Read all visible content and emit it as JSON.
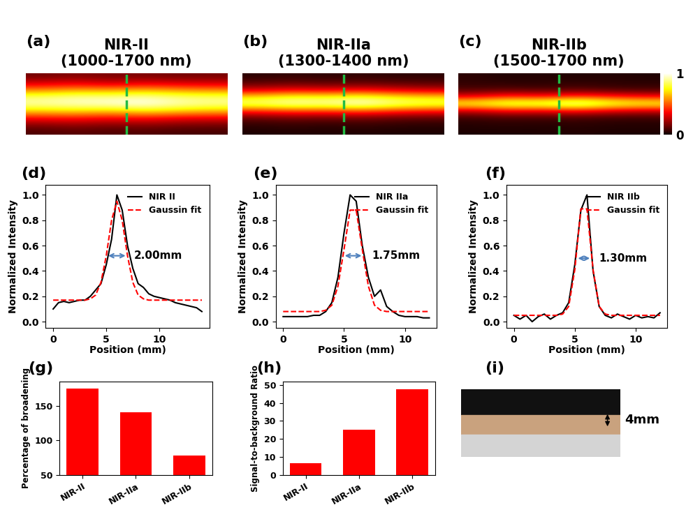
{
  "chart_data": [
    {
      "type": "image",
      "label": "(a)",
      "title": "NIR-II\n(1000-1700 nm)",
      "color_range": [
        0,
        1
      ],
      "cells": [
        [
          0.15,
          0.18,
          0.16,
          0.17,
          0.15,
          0.16
        ],
        [
          0.3,
          0.33,
          0.28,
          0.32,
          0.3,
          0.29
        ],
        [
          0.55,
          0.6,
          0.58,
          0.62,
          0.57,
          0.55
        ],
        [
          0.85,
          0.9,
          0.88,
          0.92,
          0.86,
          0.84
        ],
        [
          0.92,
          0.95,
          0.97,
          1.0,
          0.93,
          0.9
        ],
        [
          0.7,
          0.72,
          0.68,
          0.75,
          0.7,
          0.66
        ],
        [
          0.4,
          0.42,
          0.38,
          0.41,
          0.37,
          0.36
        ],
        [
          0.2,
          0.22,
          0.19,
          0.21,
          0.18,
          0.17
        ],
        [
          0.1,
          0.12,
          0.1,
          0.11,
          0.09,
          0.09
        ]
      ]
    },
    {
      "type": "image",
      "label": "(b)",
      "title": "NIR-IIa\n(1300-1400 nm)",
      "color_range": [
        0,
        1
      ],
      "cells": [
        [
          0.05,
          0.06,
          0.05,
          0.06,
          0.05,
          0.05
        ],
        [
          0.12,
          0.14,
          0.12,
          0.13,
          0.12,
          0.11
        ],
        [
          0.3,
          0.35,
          0.32,
          0.36,
          0.31,
          0.28
        ],
        [
          0.7,
          0.78,
          0.75,
          0.8,
          0.72,
          0.68
        ],
        [
          0.88,
          0.95,
          0.92,
          1.0,
          0.9,
          0.85
        ],
        [
          0.45,
          0.5,
          0.48,
          0.52,
          0.46,
          0.42
        ],
        [
          0.15,
          0.18,
          0.16,
          0.18,
          0.15,
          0.14
        ],
        [
          0.06,
          0.07,
          0.06,
          0.07,
          0.06,
          0.05
        ],
        [
          0.03,
          0.04,
          0.03,
          0.04,
          0.03,
          0.03
        ]
      ]
    },
    {
      "type": "image",
      "label": "(c)",
      "title": "NIR-IIb\n(1500-1700 nm)",
      "color_range": [
        0,
        1
      ],
      "color_ticks": [
        0,
        1
      ],
      "cells": [
        [
          0.05,
          0.03,
          0.04,
          0.03,
          0.04,
          0.03
        ],
        [
          0.06,
          0.05,
          0.05,
          0.06,
          0.05,
          0.05
        ],
        [
          0.1,
          0.12,
          0.1,
          0.12,
          0.1,
          0.09
        ],
        [
          0.35,
          0.45,
          0.4,
          0.48,
          0.42,
          0.38
        ],
        [
          0.8,
          0.9,
          0.88,
          1.0,
          0.85,
          0.8
        ],
        [
          0.3,
          0.38,
          0.35,
          0.4,
          0.33,
          0.3
        ],
        [
          0.08,
          0.1,
          0.09,
          0.1,
          0.08,
          0.08
        ],
        [
          0.04,
          0.05,
          0.04,
          0.05,
          0.04,
          0.04
        ],
        [
          0.03,
          0.03,
          0.03,
          0.04,
          0.03,
          0.03
        ]
      ]
    },
    {
      "type": "line",
      "label": "(d)",
      "x_label": "Position (mm)",
      "y_label": "Normalized Intensity",
      "xlim": [
        -0.7,
        14.7
      ],
      "xticks": [
        0,
        5,
        10
      ],
      "ylim": [
        -0.05,
        1.08
      ],
      "yticks": [
        0.0,
        0.2,
        0.4,
        0.6,
        0.8,
        1.0
      ],
      "legend": "upper right",
      "x": [
        0,
        0.5,
        1,
        1.5,
        2,
        2.5,
        3,
        3.5,
        4,
        4.5,
        5,
        5.5,
        6,
        6.5,
        7,
        7.5,
        8,
        8.5,
        9,
        9.5,
        10,
        10.5,
        11,
        11.5,
        12,
        12.5,
        13,
        13.5,
        14
      ],
      "series": [
        {
          "name": "NIR II",
          "color": "#000000",
          "line_style": "solid",
          "values": [
            0.1,
            0.15,
            0.16,
            0.15,
            0.16,
            0.17,
            0.17,
            0.2,
            0.25,
            0.3,
            0.45,
            0.65,
            1.0,
            0.88,
            0.6,
            0.42,
            0.3,
            0.27,
            0.22,
            0.2,
            0.19,
            0.18,
            0.17,
            0.15,
            0.14,
            0.13,
            0.12,
            0.11,
            0.08
          ]
        },
        {
          "name": "Gaussin fit",
          "color": "#ff0000",
          "line_style": "dashed",
          "values": [
            0.17,
            0.17,
            0.17,
            0.17,
            0.17,
            0.17,
            0.17,
            0.18,
            0.21,
            0.31,
            0.52,
            0.8,
            0.95,
            0.8,
            0.52,
            0.31,
            0.21,
            0.18,
            0.17,
            0.17,
            0.17,
            0.17,
            0.17,
            0.17,
            0.17,
            0.17,
            0.17,
            0.17,
            0.17
          ]
        }
      ],
      "annotation": {
        "text": "2.00mm",
        "from": 5.0,
        "to": 7.0,
        "y": 0.52,
        "text_x": 7.6
      }
    },
    {
      "type": "line",
      "label": "(e)",
      "x_label": "Position (mm)",
      "y_label": "Normalized Intensity",
      "xlim": [
        -0.6,
        12.6
      ],
      "xticks": [
        0,
        5,
        10
      ],
      "ylim": [
        -0.05,
        1.08
      ],
      "yticks": [
        0.0,
        0.2,
        0.4,
        0.6,
        0.8,
        1.0
      ],
      "legend": "upper right",
      "x": [
        0,
        0.5,
        1,
        1.5,
        2,
        2.5,
        3,
        3.5,
        4,
        4.5,
        5,
        5.5,
        6,
        6.5,
        7,
        7.5,
        8,
        8.5,
        9,
        9.5,
        10,
        10.5,
        11,
        11.5,
        12
      ],
      "series": [
        {
          "name": "NIR IIa",
          "color": "#000000",
          "line_style": "solid",
          "values": [
            0.04,
            0.04,
            0.04,
            0.04,
            0.04,
            0.05,
            0.05,
            0.08,
            0.15,
            0.35,
            0.7,
            1.0,
            0.95,
            0.6,
            0.35,
            0.2,
            0.25,
            0.12,
            0.08,
            0.05,
            0.04,
            0.04,
            0.04,
            0.03,
            0.03
          ]
        },
        {
          "name": "Gaussin fit",
          "color": "#ff0000",
          "line_style": "dashed",
          "values": [
            0.08,
            0.08,
            0.08,
            0.08,
            0.08,
            0.08,
            0.08,
            0.09,
            0.13,
            0.28,
            0.57,
            0.88,
            0.88,
            0.57,
            0.28,
            0.13,
            0.09,
            0.08,
            0.08,
            0.08,
            0.08,
            0.08,
            0.08,
            0.08,
            0.08
          ]
        }
      ],
      "annotation": {
        "text": "1.75mm",
        "from": 4.9,
        "to": 6.6,
        "y": 0.52,
        "text_x": 7.3
      }
    },
    {
      "type": "line",
      "label": "(f)",
      "x_label": "Position (mm)",
      "y_label": "Normalized Intensity",
      "xlim": [
        -0.6,
        12.6
      ],
      "xticks": [
        0,
        5,
        10
      ],
      "ylim": [
        -0.05,
        1.08
      ],
      "yticks": [
        0.0,
        0.2,
        0.4,
        0.6,
        0.8,
        1.0
      ],
      "legend": "upper right",
      "x": [
        0,
        0.5,
        1,
        1.5,
        2,
        2.5,
        3,
        3.5,
        4,
        4.5,
        5,
        5.5,
        6,
        6.5,
        7,
        7.5,
        8,
        8.5,
        9,
        9.5,
        10,
        10.5,
        11,
        11.5,
        12
      ],
      "series": [
        {
          "name": "NIR IIb",
          "color": "#000000",
          "line_style": "solid",
          "values": [
            0.05,
            0.02,
            0.05,
            0.0,
            0.04,
            0.06,
            0.02,
            0.05,
            0.07,
            0.15,
            0.45,
            0.88,
            1.0,
            0.4,
            0.12,
            0.05,
            0.03,
            0.06,
            0.04,
            0.02,
            0.05,
            0.03,
            0.04,
            0.03,
            0.07
          ]
        },
        {
          "name": "Gaussin fit",
          "color": "#ff0000",
          "line_style": "dashed",
          "values": [
            0.05,
            0.05,
            0.05,
            0.05,
            0.05,
            0.05,
            0.05,
            0.05,
            0.06,
            0.12,
            0.41,
            0.89,
            0.89,
            0.41,
            0.12,
            0.06,
            0.05,
            0.05,
            0.05,
            0.05,
            0.05,
            0.05,
            0.05,
            0.05,
            0.05
          ]
        }
      ],
      "annotation": {
        "text": "1.30mm",
        "from": 5.1,
        "to": 6.4,
        "y": 0.5,
        "text_x": 7.0
      }
    },
    {
      "type": "bar",
      "label": "(g)",
      "y_label": "Percentage of broadening",
      "categories": [
        "NIR-II",
        "NIR-IIa",
        "NIR-IIb"
      ],
      "values": [
        175,
        140,
        78
      ],
      "color": "#ff0000",
      "ylim": [
        50,
        185
      ],
      "yticks": [
        50,
        100,
        150
      ]
    },
    {
      "type": "bar",
      "label": "(h)",
      "y_label": "Signal-to-background Ratio",
      "categories": [
        "NIR-II",
        "NIR-IIa",
        "NIR-IIb"
      ],
      "values": [
        6.5,
        25,
        47.5
      ],
      "color": "#ff0000",
      "ylim": [
        0,
        52
      ],
      "yticks": [
        0,
        10,
        20,
        30,
        40,
        50
      ]
    },
    {
      "type": "photo",
      "label": "(i)",
      "annotation": {
        "text": "4mm"
      }
    }
  ]
}
